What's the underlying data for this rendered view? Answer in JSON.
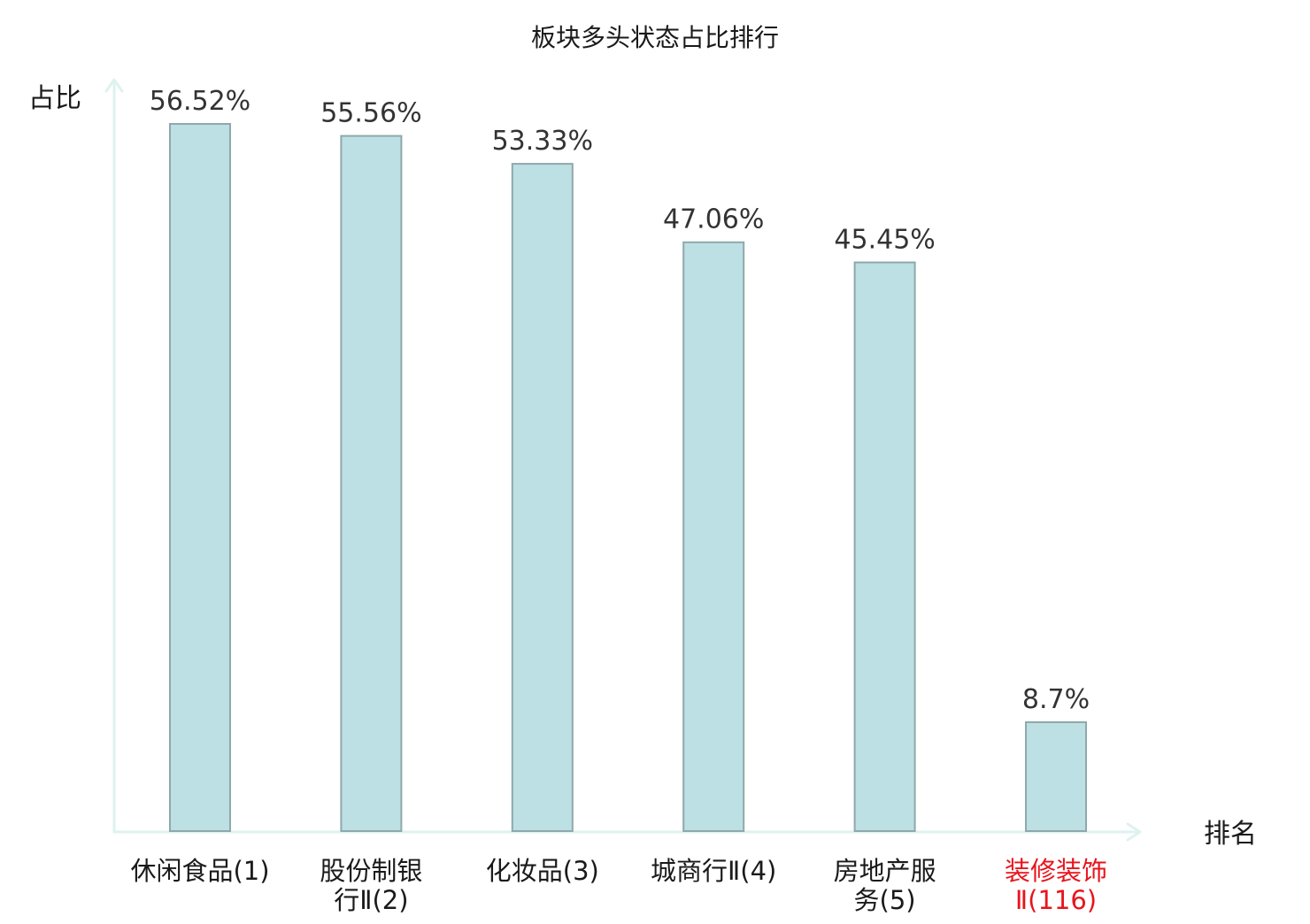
{
  "chart_data": {
    "type": "bar",
    "title": "板块多头状态占比排行",
    "ylabel": "占比",
    "xlabel": "排名",
    "categories": [
      [
        "休闲食品(1)"
      ],
      [
        "股份制银",
        "行Ⅱ(2)"
      ],
      [
        "化妆品(3)"
      ],
      [
        "城商行Ⅱ(4)"
      ],
      [
        "房地产服",
        "务(5)"
      ],
      [
        "装修装饰",
        "Ⅱ(116)"
      ]
    ],
    "values": [
      56.52,
      55.56,
      53.33,
      47.06,
      45.45,
      8.7
    ],
    "value_labels": [
      "56.52%",
      "55.56%",
      "53.33%",
      "47.06%",
      "45.45%",
      "8.7%"
    ],
    "highlight_index": 5,
    "ylim": [
      0,
      56.52
    ],
    "grid": false,
    "legend": "none"
  },
  "colors": {
    "bar_fill": "#bce0e3",
    "bar_stroke": "#8fa8ab",
    "axis": "#def2ef",
    "text": "#1a1a1a",
    "value_label": "#333333",
    "highlight": "#e8141c"
  }
}
